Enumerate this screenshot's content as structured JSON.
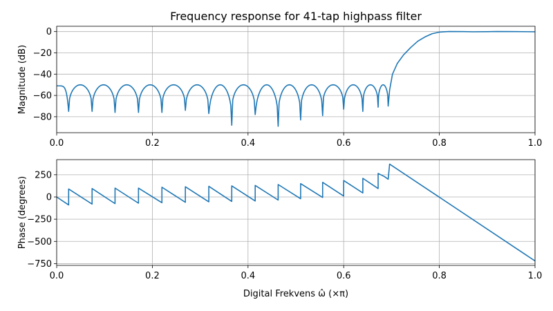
{
  "title": "Frequency response for 41-tap highpass filter",
  "colors": {
    "series": "#1f77b4",
    "grid": "#b0b0b0"
  },
  "chart_data": [
    {
      "type": "line",
      "ylabel": "Magnitude (dB)",
      "xlabel": "",
      "xlim": [
        0,
        1
      ],
      "ylim": [
        -95,
        5
      ],
      "grid": true,
      "xticks": [
        "0.0",
        "0.2",
        "0.4",
        "0.6",
        "0.8",
        "1.0"
      ],
      "yticks": [
        0,
        -20,
        -40,
        -60,
        -80
      ],
      "ytick_labels": [
        "0",
        "−20",
        "−40",
        "−60",
        "−80"
      ],
      "stopband": {
        "edge": 0.696,
        "lobe_top": -50,
        "nulls": [
          [
            0.025,
            -74
          ],
          [
            0.074,
            -75
          ],
          [
            0.122,
            -76
          ],
          [
            0.171,
            -76
          ],
          [
            0.22,
            -76
          ],
          [
            0.269,
            -74
          ],
          [
            0.318,
            -77
          ],
          [
            0.366,
            -88
          ],
          [
            0.415,
            -78
          ],
          [
            0.463,
            -89
          ],
          [
            0.51,
            -83
          ],
          [
            0.556,
            -79
          ],
          [
            0.6,
            -73
          ],
          [
            0.64,
            -75
          ],
          [
            0.672,
            -71
          ],
          [
            0.693,
            -70
          ]
        ]
      },
      "passband": [
        [
          0.696,
          -55
        ],
        [
          0.702,
          -40
        ],
        [
          0.712,
          -30
        ],
        [
          0.725,
          -22
        ],
        [
          0.74,
          -15
        ],
        [
          0.755,
          -9
        ],
        [
          0.77,
          -5
        ],
        [
          0.785,
          -2
        ],
        [
          0.8,
          -0.5
        ],
        [
          0.82,
          0.1
        ],
        [
          0.85,
          0
        ],
        [
          0.87,
          -0.2
        ],
        [
          0.9,
          -0.1
        ],
        [
          0.92,
          0.1
        ],
        [
          0.96,
          0
        ],
        [
          1.0,
          -0.2
        ]
      ]
    },
    {
      "type": "line",
      "ylabel": "Phase (degrees)",
      "xlabel": "Digital Frekvens ω̂ (×π)",
      "xlim": [
        0,
        1
      ],
      "ylim": [
        -770,
        420
      ],
      "grid": true,
      "xticks": [
        "0.0",
        "0.2",
        "0.4",
        "0.6",
        "0.8",
        "1.0"
      ],
      "yticks": [
        250,
        0,
        -250,
        -500,
        -750
      ],
      "ytick_labels": [
        "250",
        "0",
        "−250",
        "−500",
        "−750"
      ],
      "points": [
        [
          0.0,
          0
        ],
        [
          0.025,
          -90
        ],
        [
          0.025,
          90
        ],
        [
          0.074,
          -80
        ],
        [
          0.074,
          95
        ],
        [
          0.122,
          -75
        ],
        [
          0.122,
          100
        ],
        [
          0.171,
          -70
        ],
        [
          0.171,
          100
        ],
        [
          0.22,
          -65
        ],
        [
          0.22,
          110
        ],
        [
          0.269,
          -60
        ],
        [
          0.269,
          115
        ],
        [
          0.318,
          -55
        ],
        [
          0.318,
          120
        ],
        [
          0.366,
          -50
        ],
        [
          0.366,
          125
        ],
        [
          0.415,
          -45
        ],
        [
          0.415,
          130
        ],
        [
          0.463,
          -35
        ],
        [
          0.463,
          140
        ],
        [
          0.51,
          -20
        ],
        [
          0.51,
          150
        ],
        [
          0.556,
          -5
        ],
        [
          0.556,
          165
        ],
        [
          0.6,
          10
        ],
        [
          0.6,
          185
        ],
        [
          0.64,
          45
        ],
        [
          0.64,
          210
        ],
        [
          0.672,
          95
        ],
        [
          0.672,
          265
        ],
        [
          0.685,
          230
        ],
        [
          0.693,
          200
        ],
        [
          0.696,
          370
        ],
        [
          1.0,
          -720
        ]
      ]
    }
  ]
}
